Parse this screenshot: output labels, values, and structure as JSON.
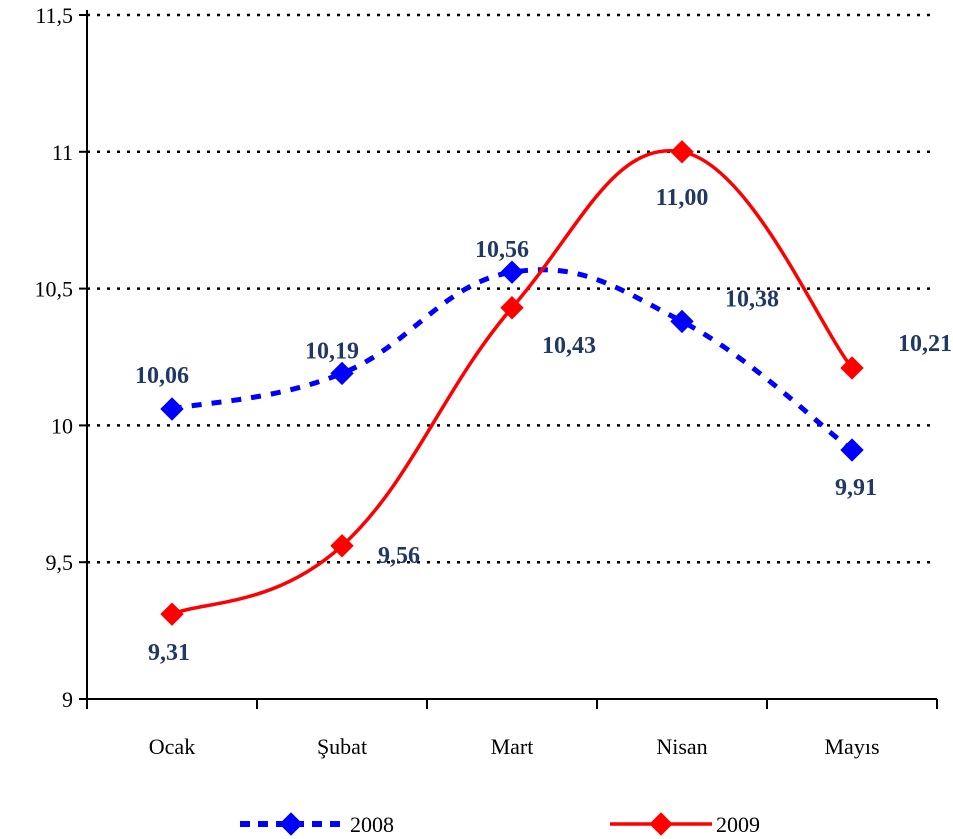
{
  "chart_data": {
    "type": "line",
    "categories": [
      "Ocak",
      "Şubat",
      "Mart",
      "Nisan",
      "Mayıs"
    ],
    "series": [
      {
        "name": "2008",
        "values": [
          10.06,
          10.19,
          10.56,
          10.38,
          9.91
        ],
        "labels": [
          "10,06",
          "10,19",
          "10,56",
          "10,38",
          "9,91"
        ],
        "color": "#0000ff",
        "line_style": "dashed",
        "marker": "diamond"
      },
      {
        "name": "2009",
        "values": [
          9.31,
          9.56,
          10.43,
          11.0,
          10.21
        ],
        "labels": [
          "9,31",
          "9,56",
          "10,43",
          "11,00",
          "10,21"
        ],
        "color": "#ff0000",
        "line_style": "solid",
        "marker": "diamond"
      }
    ],
    "y_ticks": [
      9,
      9.5,
      10,
      10.5,
      11,
      11.5
    ],
    "y_tick_labels": [
      "9",
      "9,5",
      "10",
      "10,5",
      "11",
      "11,5"
    ],
    "ylim": [
      9,
      11.5
    ],
    "grid": "horizontal-dotted",
    "legend_position": "bottom",
    "label_color": "#1f3864",
    "smooth_lines": true
  }
}
